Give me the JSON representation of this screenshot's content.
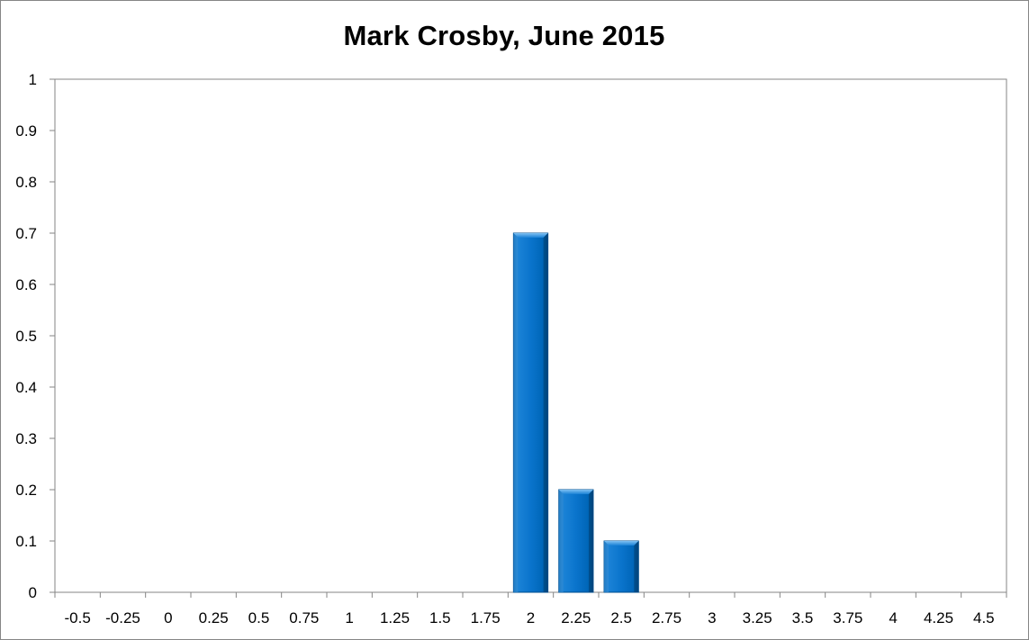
{
  "chart_data": {
    "type": "bar",
    "title": "Mark Crosby, June 2015",
    "xlabel": "",
    "ylabel": "",
    "categories": [
      "-0.5",
      "-0.25",
      "0",
      "0.25",
      "0.5",
      "0.75",
      "1",
      "1.25",
      "1.5",
      "1.75",
      "2",
      "2.25",
      "2.5",
      "2.75",
      "3",
      "3.25",
      "3.5",
      "3.75",
      "4",
      "4.25",
      "4.5"
    ],
    "values": [
      0,
      0,
      0,
      0,
      0,
      0,
      0,
      0,
      0,
      0,
      0.7,
      0.2,
      0.1,
      0,
      0,
      0,
      0,
      0,
      0,
      0,
      0
    ],
    "ylim": [
      0,
      1
    ],
    "yticks": [
      "0",
      "0.1",
      "0.2",
      "0.3",
      "0.4",
      "0.5",
      "0.6",
      "0.7",
      "0.8",
      "0.9",
      "1"
    ],
    "grid": false,
    "legend": "none",
    "colors": {
      "bar": "#0070C0",
      "bar_light": "#2F8FE0",
      "bar_dark": "#004F8F",
      "axis": "#868686"
    }
  }
}
